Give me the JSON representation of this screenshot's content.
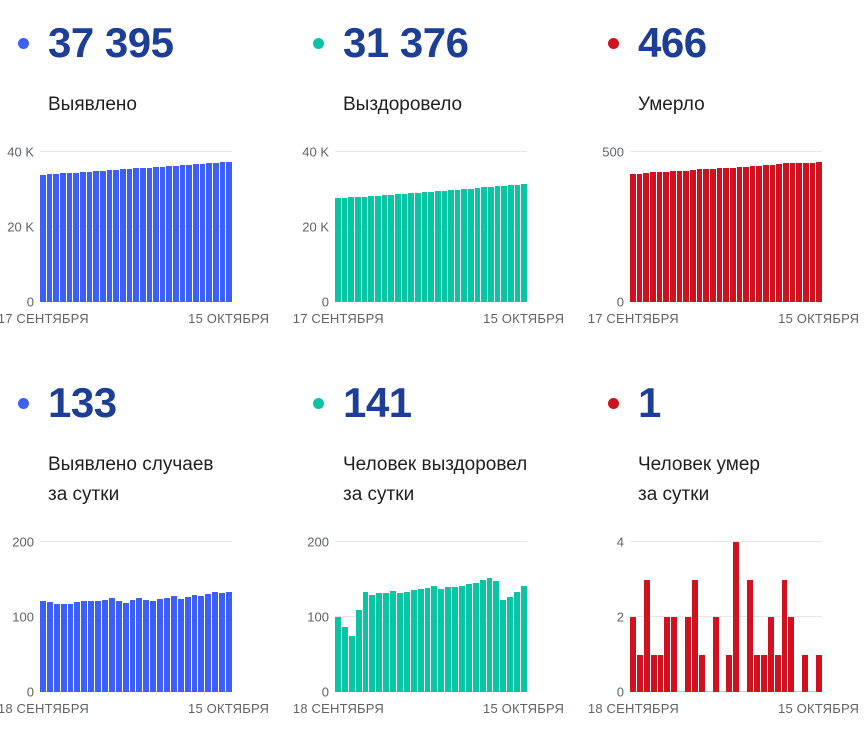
{
  "theme": {
    "background": "#ffffff",
    "headline_text_color": "#1c3e94",
    "label_text_color": "#1f1f1f",
    "axis_text_color": "#5f6368",
    "gridline_color": "#e7e7e7",
    "accent_blue": "#3d5ff5",
    "accent_teal": "#08c6a4",
    "accent_red": "#d0111f"
  },
  "chart_data": [
    {
      "type": "bar",
      "name": "detected-total",
      "headline_value": "37 395",
      "headline_label_line1": "Выявлено",
      "headline_label_line2": "",
      "color": "#3d5ff5",
      "ylim": [
        0,
        40000
      ],
      "y_ticks": [
        {
          "label": "40 K",
          "value": 40000
        },
        {
          "label": "20 K",
          "value": 20000
        },
        {
          "label": "0",
          "value": 0
        }
      ],
      "x_left": "17 СЕНТЯБРЯ",
      "x_right": "15 ОКТЯБРЯ",
      "values": [
        33917,
        34039,
        34159,
        34277,
        34395,
        34512,
        34632,
        34754,
        34875,
        34996,
        35119,
        35244,
        35366,
        35485,
        35608,
        35734,
        35857,
        35979,
        36103,
        36229,
        36357,
        36481,
        36608,
        36738,
        36866,
        36997,
        37130,
        37262,
        37395
      ]
    },
    {
      "type": "bar",
      "name": "recovered-total",
      "headline_value": "31 376",
      "headline_label_line1": "Выздоровело",
      "headline_label_line2": "",
      "color": "#08c6a4",
      "ylim": [
        0,
        40000
      ],
      "y_ticks": [
        {
          "label": "40 K",
          "value": 40000
        },
        {
          "label": "20 K",
          "value": 20000
        },
        {
          "label": "0",
          "value": 0
        }
      ],
      "x_left": "17 СЕНТЯБРЯ",
      "x_right": "15 ОКТЯБРЯ",
      "values": [
        27699,
        27799,
        27886,
        27961,
        28070,
        28204,
        28334,
        28466,
        28598,
        28733,
        28865,
        28999,
        29135,
        29272,
        29411,
        29552,
        29690,
        29830,
        29970,
        30112,
        30256,
        30402,
        30551,
        30703,
        30851,
        30974,
        31101,
        31235,
        31376
      ]
    },
    {
      "type": "bar",
      "name": "deaths-total",
      "headline_value": "466",
      "headline_label_line1": "Умерло",
      "headline_label_line2": "",
      "color": "#d0111f",
      "ylim": [
        0,
        500
      ],
      "y_ticks": [
        {
          "label": "500",
          "value": 500
        },
        {
          "label": "0",
          "value": 0
        }
      ],
      "x_left": "17 СЕНТЯБРЯ",
      "x_right": "15 ОКТЯБРЯ",
      "values": [
        426,
        428,
        429,
        432,
        433,
        434,
        436,
        438,
        438,
        440,
        443,
        444,
        444,
        446,
        446,
        447,
        451,
        451,
        454,
        455,
        456,
        458,
        459,
        462,
        464,
        464,
        465,
        465,
        466
      ]
    },
    {
      "type": "bar",
      "name": "detected-daily",
      "headline_value": "133",
      "headline_label_line1": "Выявлено случаев",
      "headline_label_line2": "за сутки",
      "color": "#3d5ff5",
      "ylim": [
        0,
        200
      ],
      "y_ticks": [
        {
          "label": "200",
          "value": 200
        },
        {
          "label": "100",
          "value": 100
        },
        {
          "label": "0",
          "value": 0
        }
      ],
      "x_left": "18 СЕНТЯБРЯ",
      "x_right": "15 ОКТЯБРЯ",
      "values": [
        122,
        120,
        118,
        118,
        117,
        120,
        122,
        121,
        121,
        123,
        125,
        122,
        119,
        123,
        126,
        123,
        122,
        124,
        126,
        128,
        124,
        127,
        130,
        128,
        131,
        133,
        132,
        133
      ]
    },
    {
      "type": "bar",
      "name": "recovered-daily",
      "headline_value": "141",
      "headline_label_line1": "Человек выздоровел",
      "headline_label_line2": "за сутки",
      "color": "#08c6a4",
      "ylim": [
        0,
        200
      ],
      "y_ticks": [
        {
          "label": "200",
          "value": 200
        },
        {
          "label": "100",
          "value": 100
        },
        {
          "label": "0",
          "value": 0
        }
      ],
      "x_left": "18 СЕНТЯБРЯ",
      "x_right": "15 ОКТЯБРЯ",
      "values": [
        100,
        87,
        75,
        109,
        134,
        130,
        132,
        132,
        135,
        132,
        134,
        136,
        137,
        139,
        141,
        138,
        140,
        140,
        142,
        144,
        146,
        149,
        152,
        148,
        123,
        127,
        134,
        141
      ]
    },
    {
      "type": "bar",
      "name": "deaths-daily",
      "headline_value": "1",
      "headline_label_line1": "Человек умер",
      "headline_label_line2": "за сутки",
      "color": "#d0111f",
      "ylim": [
        0,
        4
      ],
      "y_ticks": [
        {
          "label": "4",
          "value": 4
        },
        {
          "label": "2",
          "value": 2
        },
        {
          "label": "0",
          "value": 0
        }
      ],
      "x_left": "18 СЕНТЯБРЯ",
      "x_right": "15 ОКТЯБРЯ",
      "values": [
        2,
        1,
        3,
        1,
        1,
        2,
        2,
        0,
        2,
        3,
        1,
        0,
        2,
        0,
        1,
        4,
        0,
        3,
        1,
        1,
        2,
        1,
        3,
        2,
        0,
        1,
        0,
        1
      ]
    }
  ]
}
